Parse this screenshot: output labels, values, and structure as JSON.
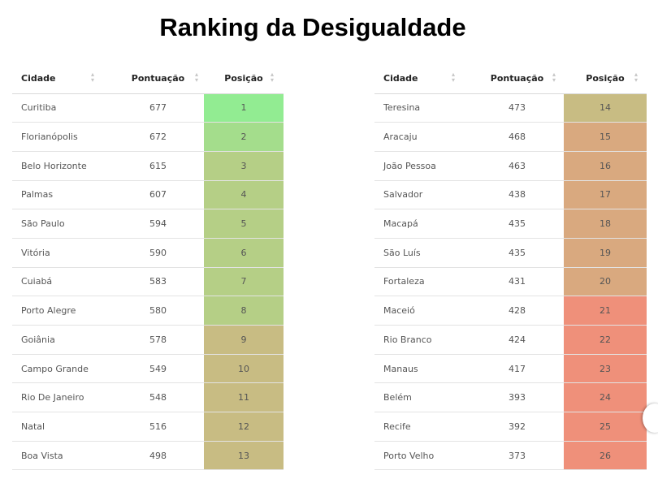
{
  "chart_data": {
    "type": "table",
    "title": "Ranking da Desigualdade",
    "columns": [
      "Cidade",
      "Pontuação",
      "Posição"
    ],
    "colors": {
      "green_bright": "#92ec92",
      "green_mid": "#a4dd8c",
      "green_dull": "#b5cf86",
      "olive": "#c8bc83",
      "tan": "#d9a97f",
      "salmon": "#ef907a"
    },
    "tables": [
      {
        "rows": [
          {
            "city": "Curitiba",
            "score": "677",
            "pos": "1",
            "color": "#92ec92"
          },
          {
            "city": "Florianópolis",
            "score": "672",
            "pos": "2",
            "color": "#a4dd8c"
          },
          {
            "city": "Belo Horizonte",
            "score": "615",
            "pos": "3",
            "color": "#b5cf86"
          },
          {
            "city": "Palmas",
            "score": "607",
            "pos": "4",
            "color": "#b5cf86"
          },
          {
            "city": "São Paulo",
            "score": "594",
            "pos": "5",
            "color": "#b5cf86"
          },
          {
            "city": "Vitória",
            "score": "590",
            "pos": "6",
            "color": "#b5cf86"
          },
          {
            "city": "Cuiabá",
            "score": "583",
            "pos": "7",
            "color": "#b5cf86"
          },
          {
            "city": "Porto Alegre",
            "score": "580",
            "pos": "8",
            "color": "#b5cf86"
          },
          {
            "city": "Goiânia",
            "score": "578",
            "pos": "9",
            "color": "#c8bc83"
          },
          {
            "city": "Campo Grande",
            "score": "549",
            "pos": "10",
            "color": "#c8bc83"
          },
          {
            "city": "Rio De Janeiro",
            "score": "548",
            "pos": "11",
            "color": "#c8bc83"
          },
          {
            "city": "Natal",
            "score": "516",
            "pos": "12",
            "color": "#c8bc83"
          },
          {
            "city": "Boa Vista",
            "score": "498",
            "pos": "13",
            "color": "#c8bc83"
          }
        ]
      },
      {
        "rows": [
          {
            "city": "Teresina",
            "score": "473",
            "pos": "14",
            "color": "#c8bc83"
          },
          {
            "city": "Aracaju",
            "score": "468",
            "pos": "15",
            "color": "#d9a97f"
          },
          {
            "city": "João Pessoa",
            "score": "463",
            "pos": "16",
            "color": "#d9a97f"
          },
          {
            "city": "Salvador",
            "score": "438",
            "pos": "17",
            "color": "#d9a97f"
          },
          {
            "city": "Macapá",
            "score": "435",
            "pos": "18",
            "color": "#d9a97f"
          },
          {
            "city": "São Luís",
            "score": "435",
            "pos": "19",
            "color": "#d9a97f"
          },
          {
            "city": "Fortaleza",
            "score": "431",
            "pos": "20",
            "color": "#d9a97f"
          },
          {
            "city": "Maceió",
            "score": "428",
            "pos": "21",
            "color": "#ef907a"
          },
          {
            "city": "Rio Branco",
            "score": "424",
            "pos": "22",
            "color": "#ef907a"
          },
          {
            "city": "Manaus",
            "score": "417",
            "pos": "23",
            "color": "#ef907a"
          },
          {
            "city": "Belém",
            "score": "393",
            "pos": "24",
            "color": "#ef907a"
          },
          {
            "city": "Recife",
            "score": "392",
            "pos": "25",
            "color": "#ef907a"
          },
          {
            "city": "Porto Velho",
            "score": "373",
            "pos": "26",
            "color": "#ef907a"
          }
        ]
      }
    ]
  }
}
